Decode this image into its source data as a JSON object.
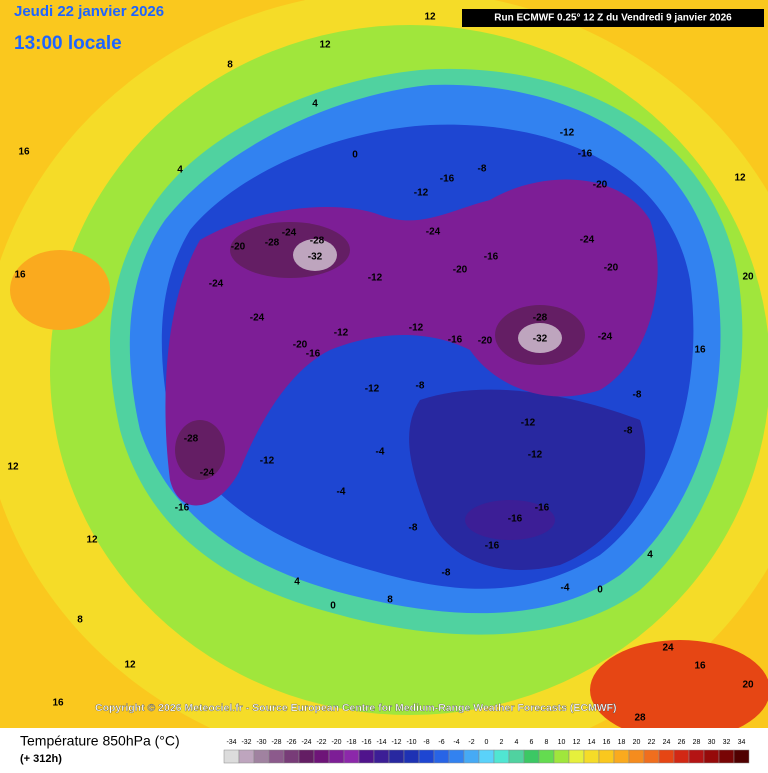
{
  "header": {
    "date": "Jeudi 22 janvier 2026",
    "time": "13:00 locale",
    "run": "Run ECMWF 0.25° 12 Z du Vendredi 9 janvier 2026"
  },
  "footer": {
    "copyright": "Copyright © 2026 Meteociel.fr - Source European Centre for Medium-Range Weather Forecasts (ECMWF)"
  },
  "legend": {
    "title": "Température 850hPa (°C)",
    "lead": "(+ 312h)",
    "ticks": [
      -34,
      -32,
      -30,
      -28,
      -26,
      -24,
      -22,
      -20,
      -18,
      -16,
      -14,
      -12,
      -10,
      -8,
      -6,
      -4,
      -2,
      0,
      2,
      4,
      6,
      8,
      10,
      12,
      14,
      16,
      18,
      20,
      22,
      24,
      26,
      28,
      30,
      32,
      34
    ],
    "colors": [
      "#dcdcdc",
      "#bea5be",
      "#a082a0",
      "#8c5a8c",
      "#783c78",
      "#641e64",
      "#6e1478",
      "#7d1e96",
      "#8c28aa",
      "#50148c",
      "#3c1e96",
      "#2828a0",
      "#1e32b4",
      "#1e46d2",
      "#2864e6",
      "#3282f0",
      "#46aaf5",
      "#5ad2fa",
      "#50e6d2",
      "#50d2a0",
      "#3cc864",
      "#64dc50",
      "#a0e63c",
      "#e6f03c",
      "#f5dc28",
      "#fac81e",
      "#faaa1e",
      "#f58c1e",
      "#f06e1e",
      "#e64614",
      "#d22814",
      "#b41414",
      "#960a0a",
      "#780505",
      "#500000"
    ]
  },
  "map_labels": [
    "-32",
    "-28",
    "-28",
    "-24",
    "-20",
    "-24",
    "-24",
    "-20",
    "-16",
    "-12",
    "-12",
    "-12",
    "-16",
    "-20",
    "-28",
    "-32",
    "-24",
    "-24",
    "-20",
    "-24",
    "-20",
    "-16",
    "-12",
    "-16",
    "-8",
    "-12",
    "-16",
    "-20",
    "-8",
    "-8",
    "-12",
    "-12",
    "-16",
    "-16",
    "-16",
    "-8",
    "-4",
    "-8",
    "-4",
    "-4",
    "-28",
    "-24",
    "-16",
    "-12",
    "0",
    "4",
    "4",
    "8",
    "12",
    "12",
    "16",
    "16",
    "8",
    "12",
    "16",
    "20",
    "24",
    "28",
    "16",
    "20",
    "12",
    "4",
    "0",
    "0",
    "4",
    "8",
    "-12",
    "-8",
    "12",
    "16",
    "12"
  ]
}
